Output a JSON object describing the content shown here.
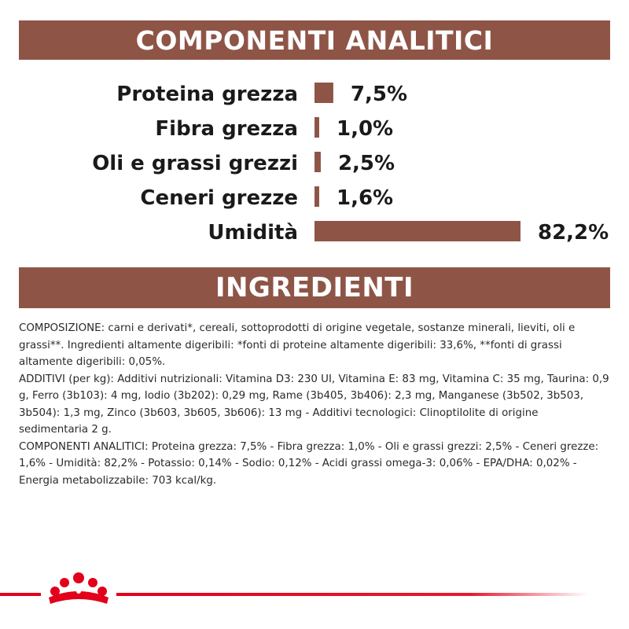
{
  "headers": {
    "analytic": "COMPONENTI ANALITICI",
    "ingredients": "INGREDIENTI"
  },
  "colors": {
    "banner": "#8e5547",
    "bar": "#8e5547",
    "brand_red": "#e2001a"
  },
  "chart_data": {
    "type": "bar",
    "orientation": "horizontal",
    "categories": [
      "Proteina grezza",
      "Fibra grezza",
      "Oli e grassi grezzi",
      "Ceneri grezze",
      "Umidità"
    ],
    "values": [
      7.5,
      1.0,
      2.5,
      1.6,
      82.2
    ],
    "value_labels": [
      "7,5%",
      "1,0%",
      "2,5%",
      "1,6%",
      "82,2%"
    ],
    "unit": "%",
    "title": "COMPONENTI ANALITICI",
    "xlim": [
      0,
      82.2
    ]
  },
  "ingredients": {
    "composition": "COMPOSIZIONE: carni e derivati*, cereali, sottoprodotti di origine vegetale, sostanze minerali, lieviti, oli e grassi**. Ingredienti altamente digeribili: *fonti di proteine altamente digeribili: 33,6%, **fonti di grassi altamente digeribili: 0,05%.",
    "additives": "ADDITIVI (per kg): Additivi nutrizionali: Vitamina D3: 230 UI, Vitamina E: 83 mg, Vitamina C: 35 mg, Taurina: 0,9 g, Ferro (3b103): 4 mg, Iodio (3b202): 0,29 mg, Rame (3b405, 3b406): 2,3 mg, Manganese (3b502, 3b503, 3b504): 1,3 mg, Zinco (3b603, 3b605, 3b606): 13 mg - Additivi tecnologici: Clinoptilolite di origine sedimentaria 2 g.",
    "analytic": "COMPONENTI ANALITICI: Proteina grezza: 7,5% - Fibra grezza: 1,0% - Oli e grassi grezzi: 2,5% - Ceneri grezze: 1,6% - Umidità: 82,2% - Potassio: 0,14% - Sodio: 0,12% - Acidi grassi omega-3: 0,06% - EPA/DHA: 0,02% - Energia metabolizzabile: 703 kcal/kg."
  },
  "logo": {
    "icon": "crown-icon"
  }
}
